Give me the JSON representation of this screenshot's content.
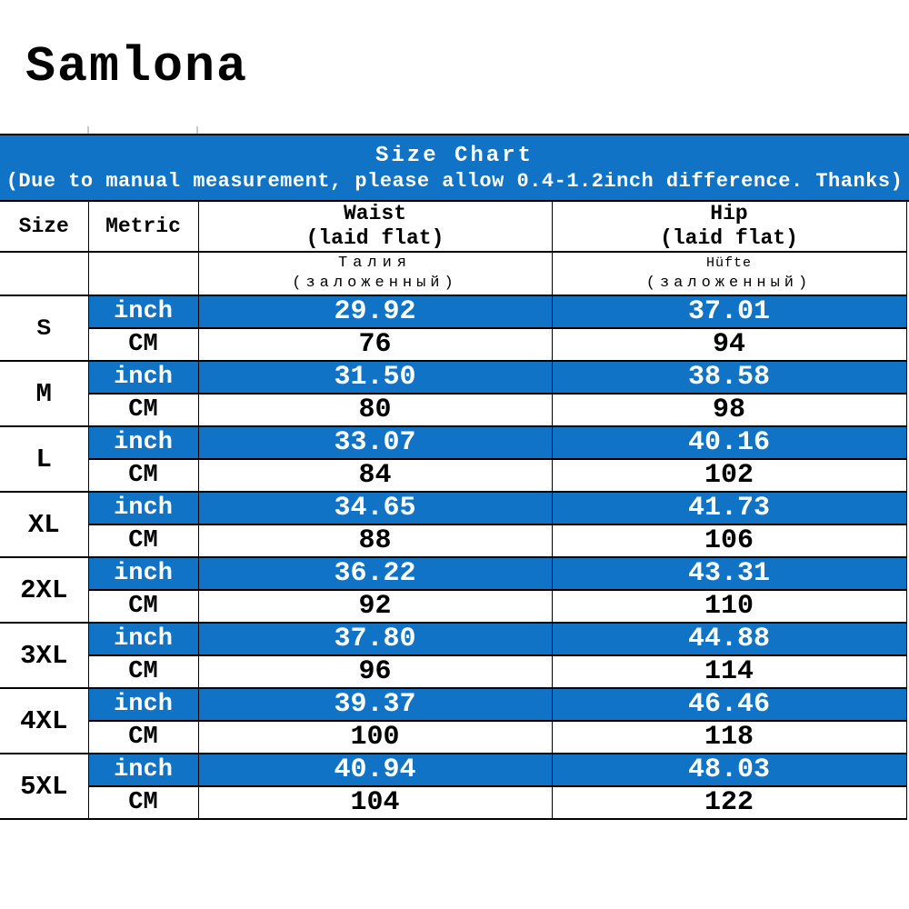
{
  "brand": "Samlona",
  "banner": {
    "title": "Size Chart",
    "subtitle": "(Due to manual measurement, please allow 0.4-1.2inch difference. Thanks)"
  },
  "colors": {
    "accent_blue": "#1073C6",
    "border": "#000000",
    "text_on_blue": "#ffffff",
    "text": "#000000"
  },
  "table": {
    "col_headers": {
      "size": "Size",
      "metric": "Metric",
      "waist": {
        "line1": "Waist",
        "line2": "(laid flat)"
      },
      "hip": {
        "line1": "Hip",
        "line2": "(laid flat)"
      },
      "waist_translated": {
        "line1": "Талия",
        "line2": "(заложенный)"
      },
      "hip_translated": {
        "line1": "Hüfte",
        "line2": "(заложенный)"
      }
    },
    "units": {
      "inch": "inch",
      "cm": "CM"
    },
    "sizes": [
      {
        "label": "S",
        "waist_inch": "29.92",
        "hip_inch": "37.01",
        "waist_cm": "76",
        "hip_cm": "94"
      },
      {
        "label": "M",
        "waist_inch": "31.50",
        "hip_inch": "38.58",
        "waist_cm": "80",
        "hip_cm": "98"
      },
      {
        "label": "L",
        "waist_inch": "33.07",
        "hip_inch": "40.16",
        "waist_cm": "84",
        "hip_cm": "102"
      },
      {
        "label": "XL",
        "waist_inch": "34.65",
        "hip_inch": "41.73",
        "waist_cm": "88",
        "hip_cm": "106"
      },
      {
        "label": "2XL",
        "waist_inch": "36.22",
        "hip_inch": "43.31",
        "waist_cm": "92",
        "hip_cm": "110"
      },
      {
        "label": "3XL",
        "waist_inch": "37.80",
        "hip_inch": "44.88",
        "waist_cm": "96",
        "hip_cm": "114"
      },
      {
        "label": "4XL",
        "waist_inch": "39.37",
        "hip_inch": "46.46",
        "waist_cm": "100",
        "hip_cm": "118"
      },
      {
        "label": "5XL",
        "waist_inch": "40.94",
        "hip_inch": "48.03",
        "waist_cm": "104",
        "hip_cm": "122"
      }
    ]
  }
}
